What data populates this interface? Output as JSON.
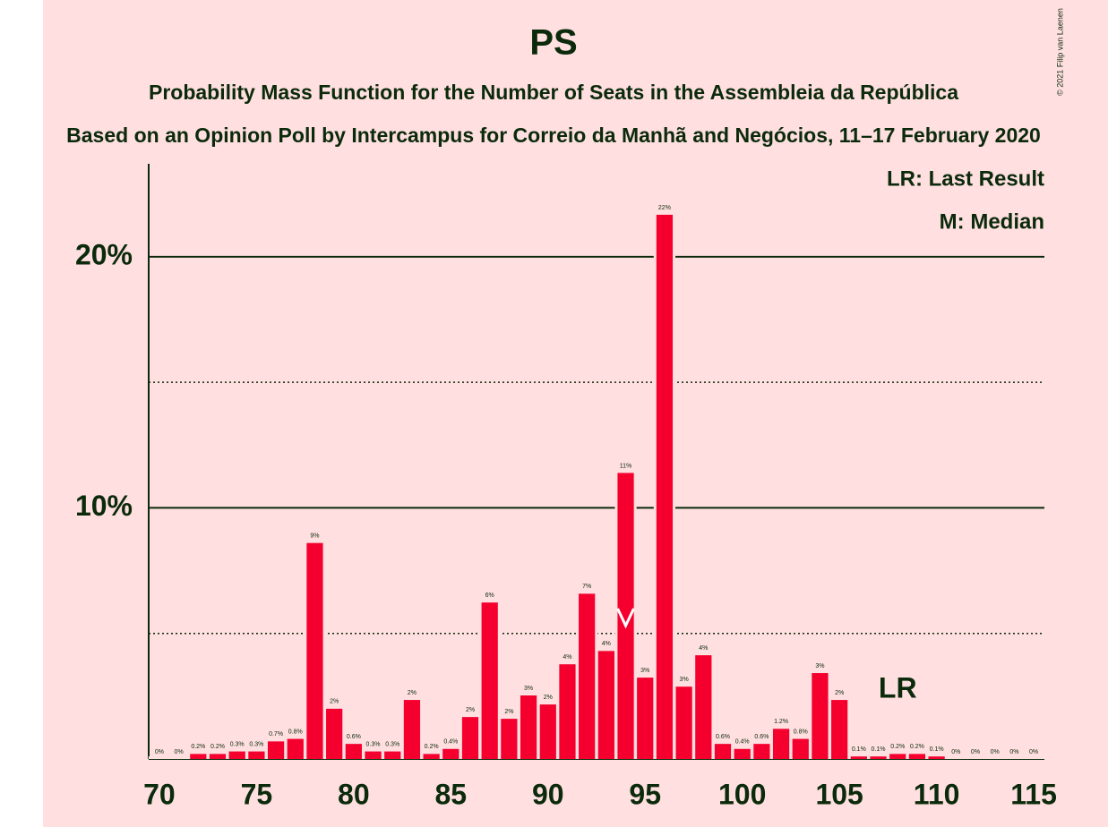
{
  "chart_data": {
    "type": "bar",
    "title": "PS",
    "subtitle": "Probability Mass Function for the Number of Seats in the Assembleia da República",
    "subtitle2": "Based on an Opinion Poll by Intercampus for Correio da Manhã and Negócios, 11–17 February 2020",
    "copyright": "© 2021 Filip van Laenen",
    "legend": [
      "LR: Last Result",
      "M: Median"
    ],
    "legend_position": "upper right",
    "color": "#f5002e",
    "background": "#ffdfe0",
    "x": [
      70,
      71,
      72,
      73,
      74,
      75,
      76,
      77,
      78,
      79,
      80,
      81,
      82,
      83,
      84,
      85,
      86,
      87,
      88,
      89,
      90,
      91,
      92,
      93,
      94,
      95,
      96,
      97,
      98,
      99,
      100,
      101,
      102,
      103,
      104,
      105,
      106,
      107,
      108,
      109,
      110,
      111,
      112,
      113,
      114,
      115
    ],
    "values": [
      0,
      0,
      0.2,
      0.2,
      0.3,
      0.3,
      0.7,
      0.8,
      8.6,
      2.0,
      0.6,
      0.3,
      0.3,
      2.35,
      0.2,
      0.4,
      1.67,
      6.23,
      1.6,
      2.53,
      2.17,
      3.77,
      6.58,
      4.3,
      11.39,
      3.24,
      21.67,
      2.88,
      4.13,
      0.6,
      0.4,
      0.6,
      1.2,
      0.8,
      3.42,
      2.35,
      0.1,
      0.1,
      0.2,
      0.2,
      0.1,
      0,
      0,
      0,
      0,
      0
    ],
    "value_labels": [
      "0%",
      "0%",
      "0.2%",
      "0.2%",
      "0.3%",
      "0.3%",
      "0.7%",
      "0.8%",
      "9%",
      "2%",
      "0.6%",
      "0.3%",
      "0.3%",
      "2%",
      "0.2%",
      "0.4%",
      "2%",
      "6%",
      "2%",
      "3%",
      "2%",
      "4%",
      "7%",
      "4%",
      "11%",
      "3%",
      "22%",
      "3%",
      "4%",
      "0.6%",
      "0.4%",
      "0.6%",
      "1.2%",
      "0.8%",
      "3%",
      "2%",
      "0.1%",
      "0.1%",
      "0.2%",
      "0.2%",
      "0.1%",
      "0%",
      "0%",
      "0%",
      "0%",
      "0%"
    ],
    "xlim": [
      69.45,
      115.55
    ],
    "xticks": [
      70,
      75,
      80,
      85,
      90,
      95,
      100,
      105,
      110,
      115
    ],
    "ylim": [
      0,
      23.7
    ],
    "yticks": [
      {
        "value": 10,
        "label": "10%"
      },
      {
        "value": 20,
        "label": "20%"
      }
    ],
    "minor_yticks": [
      5,
      15
    ],
    "grid": true,
    "median": 94,
    "last_result": 108,
    "last_result_label": "LR"
  }
}
